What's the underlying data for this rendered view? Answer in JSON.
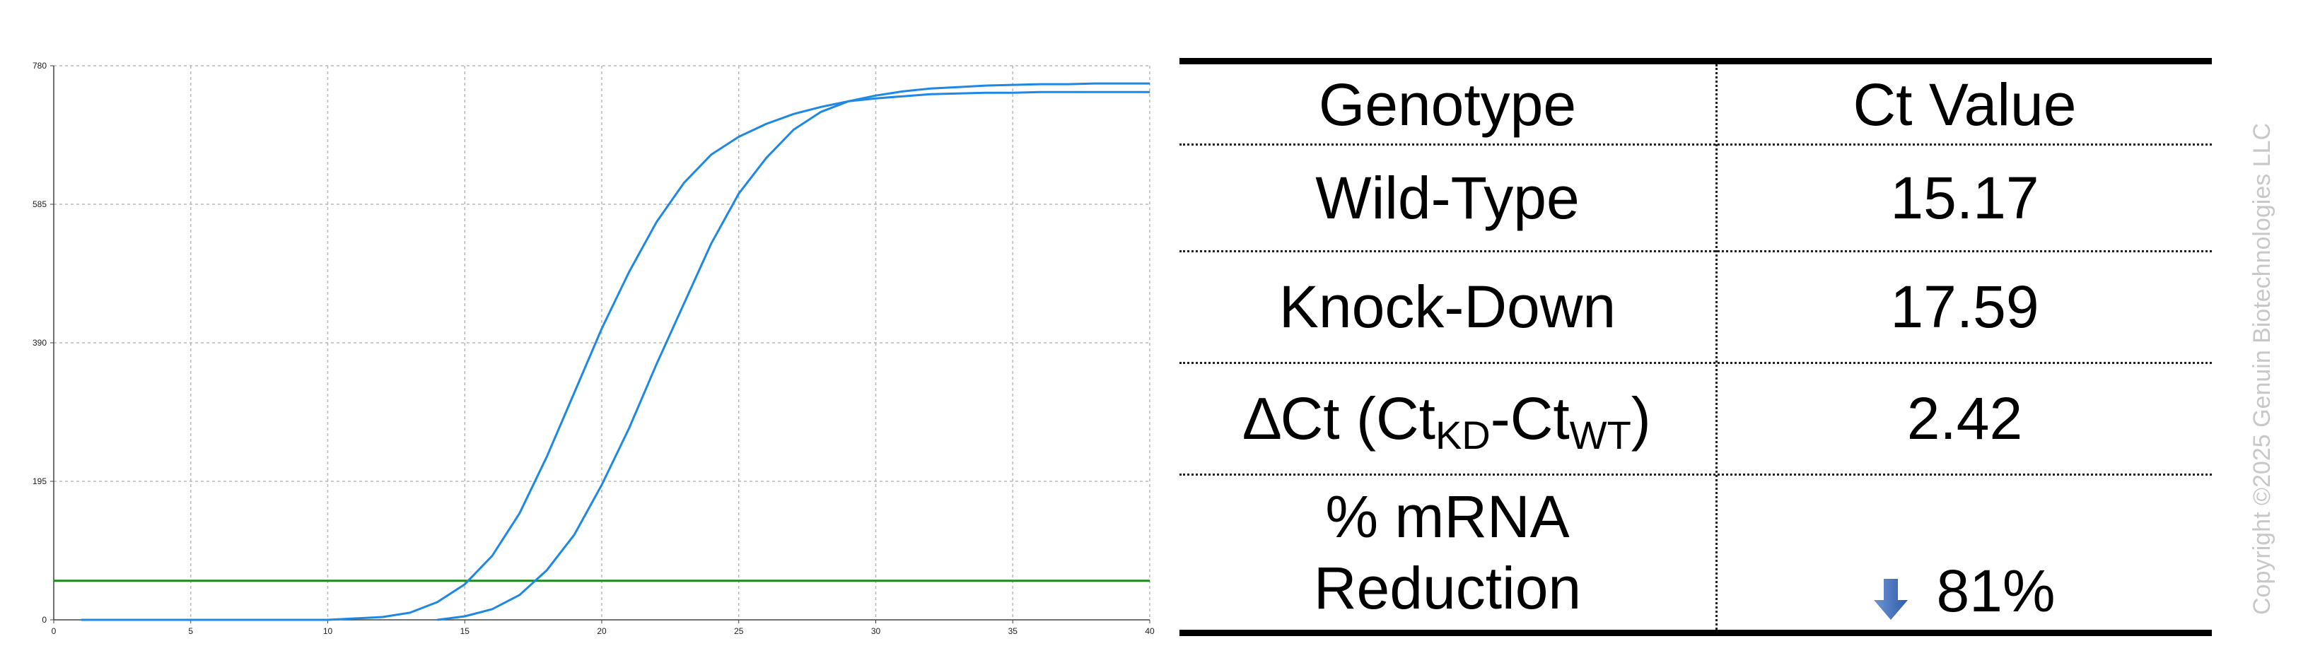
{
  "chart_data": {
    "type": "line",
    "title": "",
    "xlabel": "",
    "ylabel": "",
    "xlim": [
      0,
      40
    ],
    "ylim": [
      0,
      780
    ],
    "xticks": [
      "0",
      "5",
      "10",
      "15",
      "20",
      "25",
      "30",
      "35",
      "40"
    ],
    "yticks": [
      "0",
      "195",
      "390",
      "585",
      "780"
    ],
    "grid": true,
    "threshold": {
      "y": 55,
      "color": "#1a8a1a"
    },
    "series": [
      {
        "color": "#1e88e5",
        "x": [
          1,
          5,
          10,
          12,
          13,
          14,
          15,
          16,
          17,
          18,
          19,
          20,
          21,
          22,
          23,
          24,
          25,
          26,
          27,
          28,
          29,
          30,
          31,
          32,
          33,
          34,
          35,
          36,
          37,
          38,
          39,
          40
        ],
        "y": [
          0,
          0,
          0,
          4,
          10,
          25,
          50,
          90,
          150,
          230,
          320,
          410,
          490,
          560,
          615,
          655,
          680,
          698,
          712,
          722,
          730,
          734,
          737,
          740,
          741,
          742,
          742,
          743,
          743,
          743,
          743,
          743
        ]
      },
      {
        "color": "#1e88e5",
        "x": [
          14,
          15,
          16,
          17,
          18,
          19,
          20,
          21,
          22,
          23,
          24,
          25,
          26,
          27,
          28,
          29,
          30,
          31,
          32,
          33,
          34,
          35,
          36,
          37,
          38,
          39,
          40
        ],
        "y": [
          0,
          5,
          15,
          35,
          70,
          120,
          190,
          270,
          360,
          445,
          530,
          600,
          650,
          690,
          715,
          730,
          738,
          744,
          748,
          750,
          752,
          753,
          754,
          754,
          755,
          755,
          755
        ]
      }
    ]
  },
  "table": {
    "header": {
      "col1": "Genotype",
      "col2": "Ct Value"
    },
    "rows": [
      {
        "label": "Wild-Type",
        "value": "15.17"
      },
      {
        "label": "Knock-Down",
        "value": "17.59"
      },
      {
        "label_main": "∆Ct (Ct",
        "label_sub1": "KD",
        "label_mid": "-Ct",
        "label_sub2": "WT",
        "label_end": ")",
        "value": "2.42"
      },
      {
        "label_line1": "% mRNA",
        "label_line2": "Reduction",
        "value": "81%",
        "icon": "down-arrow-icon",
        "icon_color": "#2e5ca8"
      }
    ]
  },
  "copyright": "Copyright ©2025 Genuin Biotechnologies LLC"
}
